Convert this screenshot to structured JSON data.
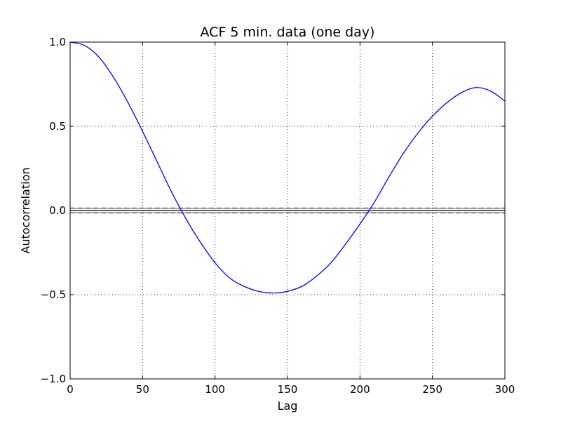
{
  "chart_data": {
    "type": "line",
    "title": "ACF 5 min. data (one day)",
    "xlabel": "Lag",
    "ylabel": "Autocorrelation",
    "xlim": [
      0,
      300
    ],
    "ylim": [
      -1.0,
      1.0
    ],
    "grid": true,
    "x_ticks": [
      0,
      50,
      100,
      150,
      200,
      250,
      300
    ],
    "x_tick_labels": [
      "0",
      "50",
      "100",
      "150",
      "200",
      "250",
      "300"
    ],
    "y_ticks": [
      1.0,
      0.5,
      0.0,
      -0.5,
      -1.0
    ],
    "y_tick_labels": [
      "1.0",
      "0.5",
      "0.0",
      "−0.5",
      "−1.0"
    ],
    "series": [
      {
        "color": "#0000ff",
        "x": [
          0,
          10,
          20,
          30,
          40,
          50,
          60,
          70,
          80,
          90,
          100,
          110,
          120,
          130,
          140,
          150,
          160,
          170,
          180,
          190,
          200,
          210,
          220,
          230,
          240,
          250,
          260,
          270,
          280,
          290,
          300
        ],
        "y": [
          1.0,
          0.98,
          0.91,
          0.79,
          0.64,
          0.47,
          0.29,
          0.11,
          -0.05,
          -0.19,
          -0.31,
          -0.4,
          -0.45,
          -0.48,
          -0.49,
          -0.48,
          -0.45,
          -0.39,
          -0.31,
          -0.2,
          -0.08,
          0.05,
          0.2,
          0.34,
          0.46,
          0.56,
          0.64,
          0.7,
          0.73,
          0.71,
          0.65
        ]
      }
    ],
    "reference_lines": [
      {
        "y": 0.0,
        "style": "solid",
        "color": "#000000"
      },
      {
        "y": 0.0117,
        "style": "solid",
        "color": "#808080"
      },
      {
        "y": -0.0117,
        "style": "solid",
        "color": "#808080"
      },
      {
        "y": 0.0154,
        "style": "dashed",
        "color": "#808080"
      },
      {
        "y": -0.0154,
        "style": "dashed",
        "color": "#808080"
      }
    ]
  }
}
